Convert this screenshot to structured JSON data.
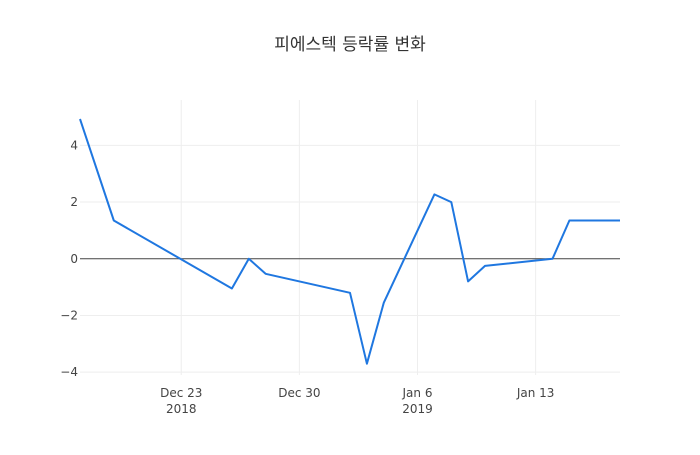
{
  "chart_data": {
    "type": "line",
    "title": "피에스텍 등락률 변화",
    "xlabel": "",
    "ylabel": "",
    "ylim": [
      -4.1,
      5.6
    ],
    "xlim": [
      "2018-12-17",
      "2019-01-18"
    ],
    "yticks": [
      4,
      2,
      0,
      -2,
      -4
    ],
    "ytick_labels": [
      "4",
      "2",
      "0",
      "−2",
      "−4"
    ],
    "xticks": [
      {
        "date": "2018-12-23",
        "label": "Dec 23",
        "sublabel": "2018"
      },
      {
        "date": "2018-12-30",
        "label": "Dec 30",
        "sublabel": ""
      },
      {
        "date": "2019-01-06",
        "label": "Jan 6",
        "sublabel": "2019"
      },
      {
        "date": "2019-01-13",
        "label": "Jan 13",
        "sublabel": ""
      }
    ],
    "grid": true,
    "zero_line": true,
    "legend": "none",
    "line_color": "#1f77e0",
    "series": [
      {
        "x": [
          "2018-12-17",
          "2018-12-19",
          "2018-12-26",
          "2018-12-27",
          "2018-12-28",
          "2019-01-02",
          "2019-01-03",
          "2019-01-04",
          "2019-01-07",
          "2019-01-08",
          "2019-01-09",
          "2019-01-10",
          "2019-01-14",
          "2019-01-15",
          "2019-01-16",
          "2019-01-17",
          "2019-01-18"
        ],
        "y": [
          4.93,
          1.35,
          -1.05,
          0.0,
          -0.53,
          -1.2,
          -3.7,
          -1.55,
          2.27,
          2.0,
          -0.8,
          -0.25,
          0.0,
          1.35,
          1.35,
          1.35,
          1.35
        ]
      }
    ]
  }
}
